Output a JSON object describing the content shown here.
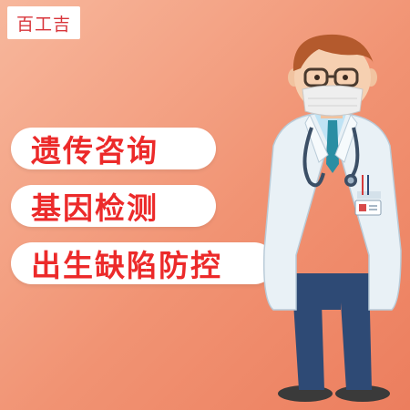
{
  "brand": {
    "name": "百工吉"
  },
  "pills": [
    {
      "label": "遗传咨询"
    },
    {
      "label": "基因检测"
    },
    {
      "label": "出生缺陷防控"
    }
  ],
  "colors": {
    "background": "#f19373",
    "pill_bg": "#ffffff",
    "pill_text": "#ec2a2a",
    "brand_text": "#d8343a",
    "coat": "#e9f1f6",
    "trousers": "#2e4a75",
    "hair": "#b45a2d"
  },
  "illustration": {
    "subject": "doctor with mask, stethoscope and ID badge"
  }
}
